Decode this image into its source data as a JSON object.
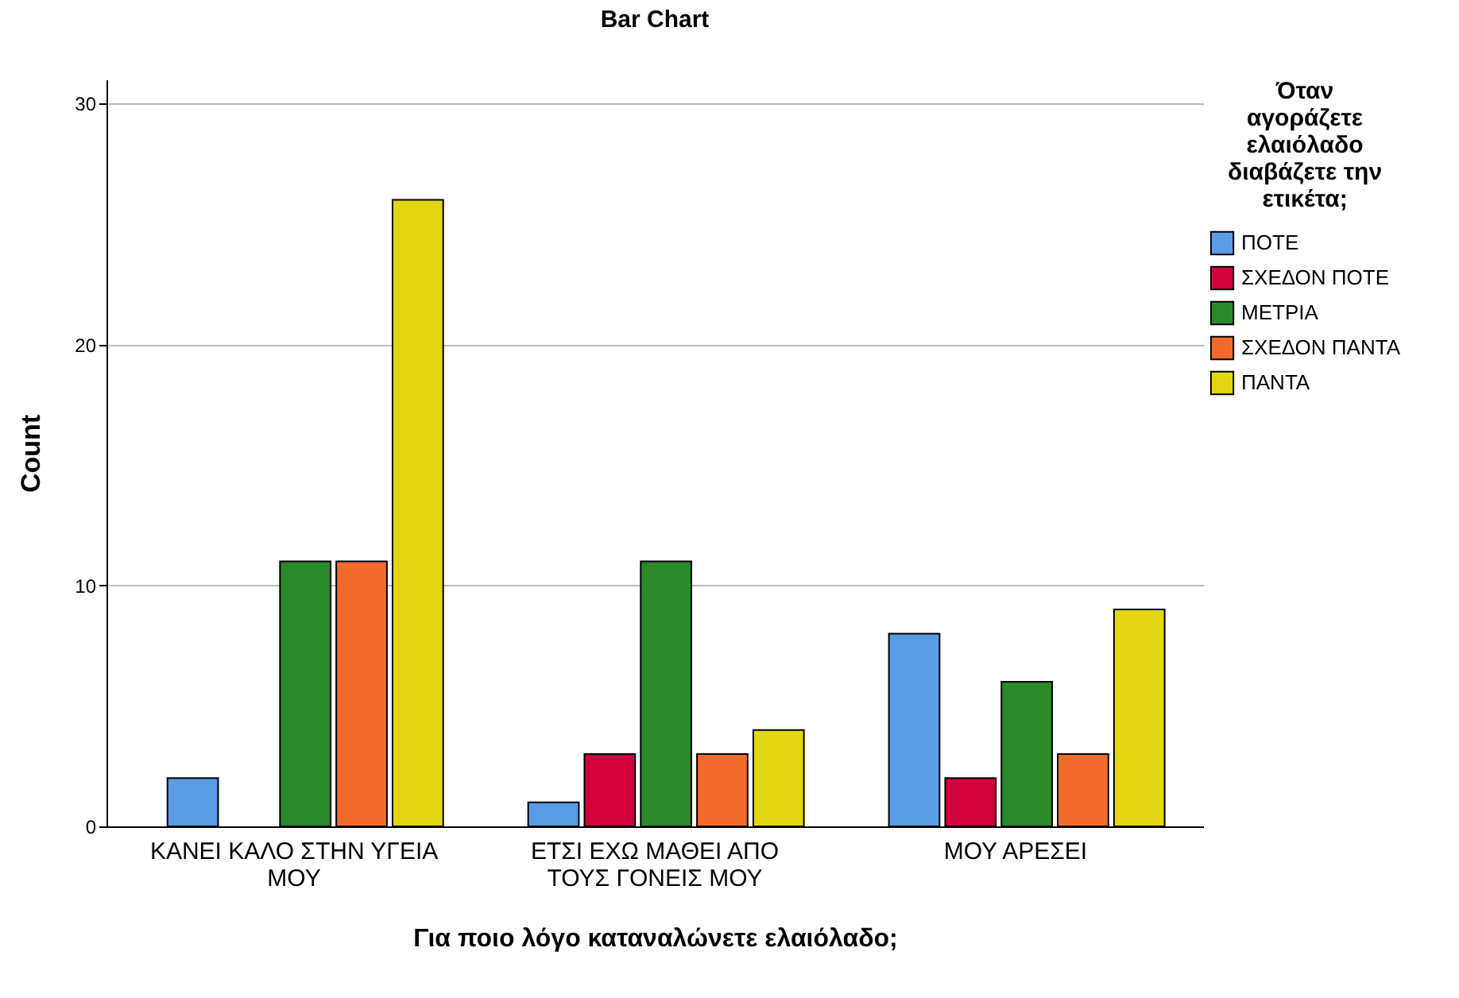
{
  "chart_data": {
    "type": "bar",
    "title": "Bar Chart",
    "xlabel": "Για ποιο λόγο καταναλώνετε ελαιόλαδο;",
    "ylabel": "Count",
    "legend_title": "Όταν αγοράζετε ελαιόλαδο διαβάζετε την ετικέτα;",
    "categories": [
      "ΚΑΝΕΙ ΚΑΛΟ ΣΤΗΝ ΥΓΕΙΑ ΜΟΥ",
      "ΕΤΣΙ ΕΧΩ ΜΑΘΕΙ ΑΠΟ ΤΟΥΣ ΓΟΝΕΙΣ ΜΟΥ",
      "ΜΟΥ ΑΡΕΣΕΙ"
    ],
    "series": [
      {
        "name": "ΠΟΤΕ",
        "color": "#5a9be6",
        "values": [
          2,
          1,
          8
        ]
      },
      {
        "name": "ΣΧΕΔΟΝ ΠΟΤΕ",
        "color": "#d2003c",
        "values": [
          null,
          3,
          2
        ]
      },
      {
        "name": "ΜΕΤΡΙΑ",
        "color": "#2a8a2a",
        "values": [
          11,
          11,
          6
        ]
      },
      {
        "name": "ΣΧΕΔΟΝ ΠΑΝΤΑ",
        "color": "#f26b2c",
        "values": [
          11,
          3,
          3
        ]
      },
      {
        "name": "ΠΑΝΤΑ",
        "color": "#e2d614",
        "values": [
          26,
          4,
          9
        ]
      }
    ],
    "ylim": [
      0,
      31
    ],
    "yticks": [
      0,
      10,
      20,
      30
    ],
    "grid": "y",
    "legend": "top right"
  }
}
